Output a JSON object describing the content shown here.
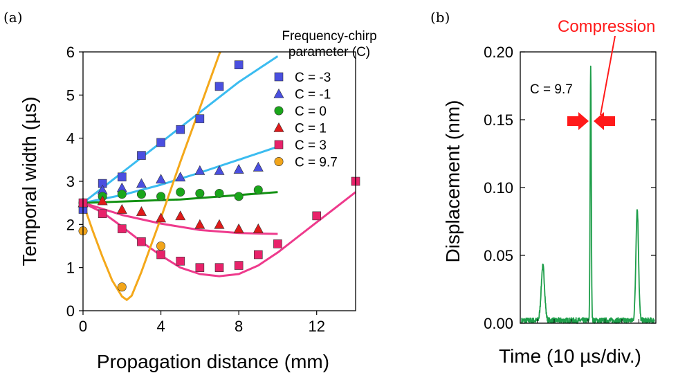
{
  "panel_a_label": "(a)",
  "panel_b_label": "(b)",
  "chart_data": [
    {
      "type": "scatter",
      "xlabel": "Propagation distance (mm)",
      "ylabel": "Temporal width (µs)",
      "xlim": [
        0,
        14
      ],
      "ylim": [
        0,
        6
      ],
      "xticks": [
        "0",
        "4",
        "8",
        "12"
      ],
      "yticks": [
        "0",
        "1",
        "2",
        "3",
        "4",
        "5",
        "6"
      ],
      "legend_title_line1": "Frequency-chirp",
      "legend_title_line2": "parameter (C)",
      "legend_placement": "right",
      "series": [
        {
          "name": "C = -3",
          "marker": "square",
          "color": "#4a4fe0",
          "line_color": "#3bbcf0",
          "points": [
            [
              0,
              2.35
            ],
            [
              1,
              2.95
            ],
            [
              2,
              3.1
            ],
            [
              3,
              3.6
            ],
            [
              4,
              3.9
            ],
            [
              5,
              4.2
            ],
            [
              6,
              4.45
            ],
            [
              7,
              5.2
            ],
            [
              8,
              5.7
            ]
          ],
          "fit": [
            [
              0,
              2.5
            ],
            [
              1,
              2.85
            ],
            [
              2,
              3.2
            ],
            [
              3,
              3.55
            ],
            [
              4,
              3.9
            ],
            [
              5,
              4.25
            ],
            [
              6,
              4.6
            ],
            [
              7,
              4.95
            ],
            [
              8,
              5.3
            ],
            [
              9,
              5.6
            ],
            [
              10,
              5.9
            ]
          ]
        },
        {
          "name": "C = -1",
          "marker": "triangle",
          "color": "#4a4fe0",
          "line_color": "#3bbcf0",
          "points": [
            [
              0,
              2.5
            ],
            [
              1,
              2.8
            ],
            [
              2,
              2.85
            ],
            [
              3,
              2.95
            ],
            [
              4,
              3.05
            ],
            [
              5,
              3.1
            ],
            [
              6,
              3.25
            ],
            [
              7,
              3.25
            ],
            [
              8,
              3.28
            ],
            [
              9,
              3.33
            ]
          ],
          "fit": [
            [
              0,
              2.5
            ],
            [
              2,
              2.68
            ],
            [
              4,
              2.92
            ],
            [
              6,
              3.2
            ],
            [
              8,
              3.5
            ],
            [
              10,
              3.8
            ]
          ]
        },
        {
          "name": "C = 0",
          "marker": "circle",
          "color": "#1aa61a",
          "line_color": "#149214",
          "points": [
            [
              0,
              2.5
            ],
            [
              1,
              2.65
            ],
            [
              2,
              2.7
            ],
            [
              3,
              2.7
            ],
            [
              4,
              2.65
            ],
            [
              5,
              2.75
            ],
            [
              6,
              2.72
            ],
            [
              7,
              2.72
            ],
            [
              8,
              2.65
            ],
            [
              9,
              2.8
            ]
          ],
          "fit": [
            [
              0,
              2.5
            ],
            [
              5,
              2.58
            ],
            [
              10,
              2.75
            ]
          ]
        },
        {
          "name": "C = 1",
          "marker": "triangle",
          "color": "#e01a1a",
          "line_color": "#ee3a8c",
          "points": [
            [
              0,
              2.5
            ],
            [
              1,
              2.55
            ],
            [
              2,
              2.35
            ],
            [
              3,
              2.3
            ],
            [
              4,
              2.15
            ],
            [
              5,
              2.2
            ],
            [
              6,
              2.0
            ],
            [
              7,
              2.0
            ],
            [
              8,
              1.9
            ],
            [
              9,
              1.9
            ]
          ],
          "fit": [
            [
              0,
              2.5
            ],
            [
              2,
              2.22
            ],
            [
              4,
              2.02
            ],
            [
              6,
              1.87
            ],
            [
              8,
              1.8
            ],
            [
              10,
              1.78
            ]
          ]
        },
        {
          "name": "C = 3",
          "marker": "square",
          "color": "#e8226a",
          "line_color": "#ee3a8c",
          "points": [
            [
              0,
              2.5
            ],
            [
              1,
              2.25
            ],
            [
              2,
              1.9
            ],
            [
              3,
              1.6
            ],
            [
              4,
              1.3
            ],
            [
              5,
              1.15
            ],
            [
              6,
              1.0
            ],
            [
              7,
              1.0
            ],
            [
              8,
              1.05
            ],
            [
              9,
              1.3
            ],
            [
              10,
              1.55
            ],
            [
              12,
              2.2
            ],
            [
              14,
              3.0
            ]
          ],
          "fit": [
            [
              0,
              2.5
            ],
            [
              1,
              2.28
            ],
            [
              2,
              1.95
            ],
            [
              3,
              1.6
            ],
            [
              4,
              1.28
            ],
            [
              5,
              1.0
            ],
            [
              6,
              0.85
            ],
            [
              7,
              0.8
            ],
            [
              8,
              0.85
            ],
            [
              9,
              1.05
            ],
            [
              10,
              1.35
            ],
            [
              11,
              1.7
            ],
            [
              12,
              2.05
            ],
            [
              13,
              2.4
            ],
            [
              14,
              2.75
            ]
          ]
        },
        {
          "name": "C = 9.7",
          "marker": "circle",
          "color": "#f2a51a",
          "line_color": "#f4a81a",
          "points": [
            [
              0,
              1.85
            ],
            [
              2,
              0.55
            ],
            [
              4,
              1.5
            ]
          ],
          "fit": [
            [
              0,
              2.5
            ],
            [
              0.5,
              1.85
            ],
            [
              1,
              1.25
            ],
            [
              1.5,
              0.7
            ],
            [
              2,
              0.33
            ],
            [
              2.25,
              0.25
            ],
            [
              2.5,
              0.35
            ],
            [
              3,
              0.9
            ],
            [
              4,
              2.15
            ],
            [
              5,
              3.45
            ],
            [
              6,
              4.7
            ],
            [
              7,
              5.95
            ],
            [
              7.05,
              6.0
            ]
          ]
        }
      ]
    },
    {
      "type": "line",
      "xlabel": "Time (10 µs/div.)",
      "ylabel": "Displacement (nm)",
      "ylim": [
        0,
        0.2
      ],
      "yticks": [
        "0.00",
        "0.05",
        "0.10",
        "0.15",
        "0.20"
      ],
      "annotation": "C = 9.7",
      "highlight_label": "Compression",
      "color": "#1e9e4a",
      "peaks": [
        {
          "center": 0.16,
          "height": 0.04,
          "width": 0.018
        },
        {
          "center": 0.52,
          "height": 0.186,
          "width": 0.006
        },
        {
          "center": 0.87,
          "height": 0.082,
          "width": 0.014
        }
      ]
    }
  ]
}
